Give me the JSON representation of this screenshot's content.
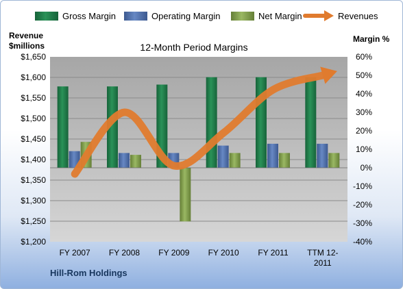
{
  "chart_data": {
    "type": "bar",
    "title": "12-Month Period Margins",
    "company": "Hill-Rom Holdings",
    "left_axis_label": [
      "Revenue",
      "$millions"
    ],
    "right_axis_label": "Margin %",
    "categories": [
      "FY 2007",
      "FY 2008",
      "FY 2009",
      "FY 2010",
      "FY 2011",
      "TTM 12-2011"
    ],
    "category_label_lines": [
      [
        "FY 2007"
      ],
      [
        "FY 2008"
      ],
      [
        "FY 2009"
      ],
      [
        "FY 2010"
      ],
      [
        "FY 2011"
      ],
      [
        "TTM 12-",
        "2011"
      ]
    ],
    "left_ticks": [
      "$1,650",
      "$1,600",
      "$1,550",
      "$1,500",
      "$1,450",
      "$1,400",
      "$1,350",
      "$1,300",
      "$1,250",
      "$1,200"
    ],
    "right_ticks": [
      "60%",
      "50%",
      "40%",
      "30%",
      "20%",
      "10%",
      "0%",
      "-10%",
      "-20%",
      "-30%",
      "-40%"
    ],
    "ylim_left": [
      1200,
      1650
    ],
    "ylim_right": [
      -40,
      60
    ],
    "series": [
      {
        "name": "Gross Margin",
        "axis": "right",
        "kind": "bar",
        "color": "#1e7a45",
        "values": [
          44,
          44,
          45,
          49,
          49,
          49
        ]
      },
      {
        "name": "Operating Margin",
        "axis": "right",
        "kind": "bar",
        "color": "#4f6fa8",
        "values": [
          9,
          8,
          8,
          12,
          13,
          13
        ]
      },
      {
        "name": "Net Margin",
        "axis": "right",
        "kind": "bar",
        "color": "#7e9c4a",
        "values": [
          14,
          7,
          -29,
          8,
          8,
          8
        ]
      },
      {
        "name": "Revenues",
        "axis": "left",
        "kind": "line",
        "color": "#e07b2e",
        "values": [
          1365,
          1515,
          1385,
          1465,
          1570,
          1605
        ]
      }
    ],
    "legend_position": "top",
    "grid": true
  }
}
